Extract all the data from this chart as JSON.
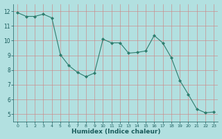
{
  "x": [
    0,
    1,
    2,
    3,
    4,
    5,
    6,
    7,
    8,
    9,
    10,
    11,
    12,
    13,
    14,
    15,
    16,
    17,
    18,
    19,
    20,
    21,
    22,
    23
  ],
  "y": [
    11.9,
    11.65,
    11.65,
    11.8,
    11.55,
    9.05,
    8.3,
    7.85,
    7.55,
    7.8,
    10.1,
    9.85,
    9.85,
    9.15,
    9.2,
    9.3,
    10.35,
    9.85,
    8.85,
    7.3,
    6.35,
    5.35,
    5.1,
    5.15
  ],
  "line_color": "#2e7d6e",
  "marker": "D",
  "marker_size": 2.0,
  "bg_color": "#b2e0e0",
  "grid_color": "#d08080",
  "xlabel": "Humidex (Indice chaleur)",
  "xlim": [
    -0.5,
    23.5
  ],
  "ylim": [
    4.5,
    12.5
  ],
  "yticks": [
    5,
    6,
    7,
    8,
    9,
    10,
    11,
    12
  ],
  "xticks": [
    0,
    1,
    2,
    3,
    4,
    5,
    6,
    7,
    8,
    9,
    10,
    11,
    12,
    13,
    14,
    15,
    16,
    17,
    18,
    19,
    20,
    21,
    22,
    23
  ]
}
